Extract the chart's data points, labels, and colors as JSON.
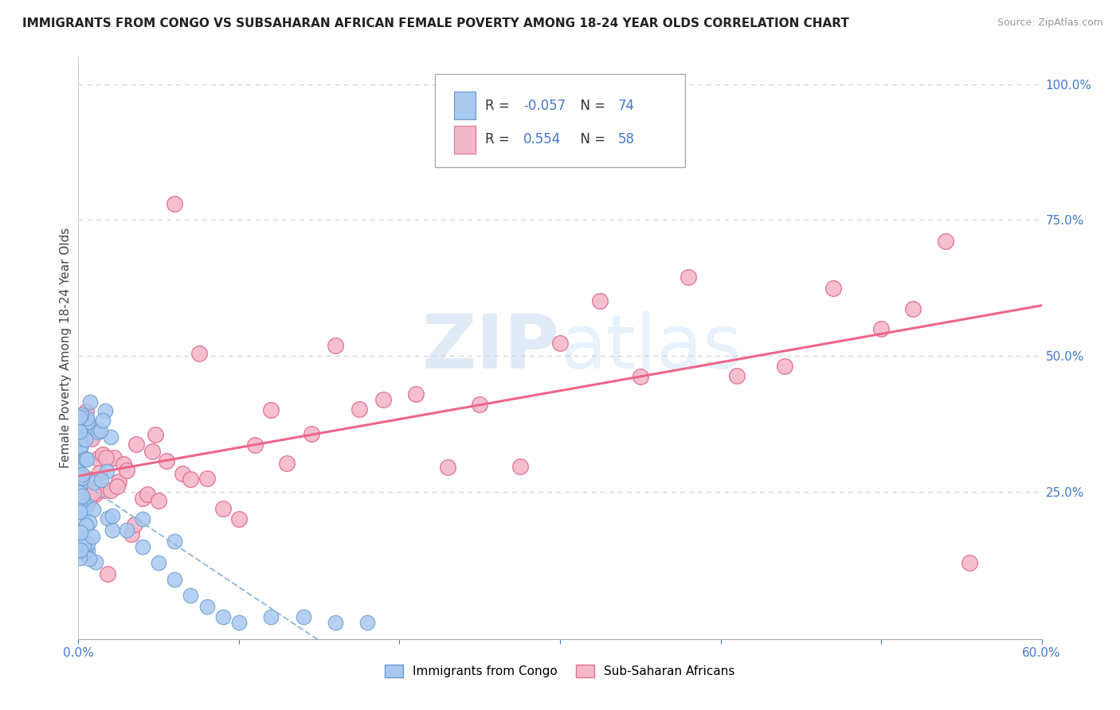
{
  "title": "IMMIGRANTS FROM CONGO VS SUBSAHARAN AFRICAN FEMALE POVERTY AMONG 18-24 YEAR OLDS CORRELATION CHART",
  "source": "Source: ZipAtlas.com",
  "ylabel": "Female Poverty Among 18-24 Year Olds",
  "xlim": [
    0.0,
    0.6
  ],
  "ylim": [
    -0.02,
    1.05
  ],
  "congo_R": "-0.057",
  "congo_N": "74",
  "subsaharan_R": "0.554",
  "subsaharan_N": "58",
  "watermark_zip": "ZIP",
  "watermark_atlas": "atlas",
  "congo_color": "#a8c8f0",
  "congo_edge_color": "#6699cc",
  "subsaharan_color": "#f5b8cb",
  "subsaharan_edge_color": "#e07090",
  "trendline_congo_color": "#99bbdd",
  "trendline_subsaharan_color": "#ee6688",
  "background_color": "#ffffff",
  "grid_color": "#cccccc",
  "legend_text_color": "#333333",
  "rv_color": "#4477cc",
  "title_color": "#222222",
  "source_color": "#999999",
  "ylabel_color": "#444444",
  "tick_color": "#4477cc"
}
